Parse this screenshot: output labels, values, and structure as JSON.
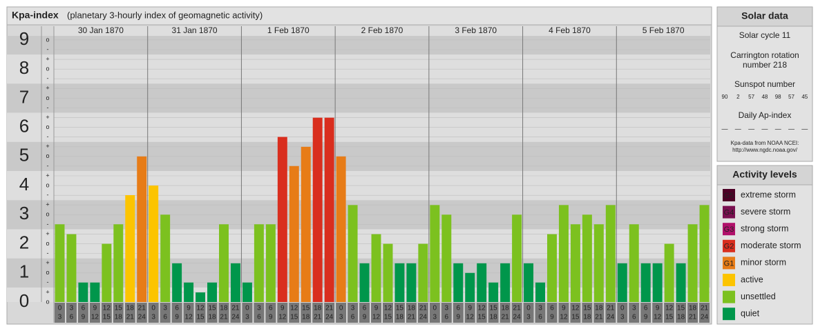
{
  "chart_data": {
    "type": "bar",
    "title": "Kpa-index",
    "subtitle": "(planetary 3-hourly index of geomagnetic activity)",
    "ylim": [
      0,
      9.14
    ],
    "yticks": [
      0,
      1,
      2,
      3,
      4,
      5,
      6,
      7,
      8,
      9
    ],
    "minor_labels": [
      "o",
      "+",
      "-"
    ],
    "hour_labels": [
      0,
      3,
      6,
      9,
      12,
      15,
      18,
      21,
      24
    ],
    "days": [
      {
        "date": "30 Jan 1870",
        "values": [
          2.67,
          2.33,
          0.67,
          0.67,
          2,
          2.67,
          3.67,
          5
        ],
        "colors": [
          "#7cc11f",
          "#7cc11f",
          "#00964b",
          "#00964b",
          "#7cc11f",
          "#7cc11f",
          "#fcc400",
          "#e77c17"
        ]
      },
      {
        "date": "31 Jan 1870",
        "values": [
          4,
          3,
          1.33,
          0.67,
          0.33,
          0.67,
          2.67,
          1.33
        ],
        "colors": [
          "#fcc400",
          "#7cc11f",
          "#00964b",
          "#00964b",
          "#00964b",
          "#00964b",
          "#7cc11f",
          "#00964b"
        ]
      },
      {
        "date": "1 Feb 1870",
        "values": [
          0.67,
          2.67,
          2.67,
          5.67,
          4.67,
          5.33,
          6.33,
          6.33
        ],
        "colors": [
          "#00964b",
          "#7cc11f",
          "#7cc11f",
          "#d92e1e",
          "#e77c17",
          "#e77c17",
          "#d92e1e",
          "#d92e1e"
        ]
      },
      {
        "date": "2 Feb 1870",
        "values": [
          5,
          3.33,
          1.33,
          2.33,
          2,
          1.33,
          1.33,
          2
        ],
        "colors": [
          "#e77c17",
          "#7cc11f",
          "#00964b",
          "#7cc11f",
          "#7cc11f",
          "#00964b",
          "#00964b",
          "#7cc11f"
        ]
      },
      {
        "date": "3 Feb 1870",
        "values": [
          3.33,
          3,
          1.33,
          1,
          1.33,
          0.67,
          1.33,
          3
        ],
        "colors": [
          "#7cc11f",
          "#7cc11f",
          "#00964b",
          "#00964b",
          "#00964b",
          "#00964b",
          "#00964b",
          "#7cc11f"
        ]
      },
      {
        "date": "4 Feb 1870",
        "values": [
          1.33,
          0.67,
          2.33,
          3.33,
          2.67,
          3,
          2.67,
          3.33
        ],
        "colors": [
          "#00964b",
          "#00964b",
          "#7cc11f",
          "#7cc11f",
          "#7cc11f",
          "#7cc11f",
          "#7cc11f",
          "#7cc11f"
        ]
      },
      {
        "date": "5 Feb 1870",
        "values": [
          1.33,
          2.67,
          1.33,
          1.33,
          2,
          1.33,
          2.67,
          3.33
        ],
        "colors": [
          "#00964b",
          "#7cc11f",
          "#00964b",
          "#00964b",
          "#7cc11f",
          "#00964b",
          "#7cc11f",
          "#7cc11f"
        ]
      }
    ]
  },
  "solar_data": {
    "title": "Solar data",
    "solar_cycle": "Solar cycle 11",
    "carrington": [
      "Carrington rotation",
      "number 218"
    ],
    "sunspot_title": "Sunspot number",
    "sunspot_numbers": [
      90,
      2,
      57,
      48,
      98,
      57,
      45
    ],
    "ap_title": "Daily Ap-index",
    "ap_values": [
      "—",
      "—",
      "—",
      "—",
      "—",
      "—",
      "—"
    ],
    "source": [
      "Kpa-data from NOAA NCEI:",
      "http://www.ngdc.noaa.gov/"
    ]
  },
  "activity_levels": {
    "title": "Activity levels",
    "items": [
      {
        "code": "G5",
        "label": "extreme storm",
        "color": "#4d0026"
      },
      {
        "code": "G4",
        "label": "severe storm",
        "color": "#7a1050"
      },
      {
        "code": "G3",
        "label": "strong storm",
        "color": "#b0106a"
      },
      {
        "code": "G2",
        "label": "moderate storm",
        "color": "#d92e1e"
      },
      {
        "code": "G1",
        "label": "minor storm",
        "color": "#e77c17"
      },
      {
        "label": "active",
        "color": "#fcc400"
      },
      {
        "label": "unsettled",
        "color": "#7cc11f"
      },
      {
        "label": "quiet",
        "color": "#00964b"
      }
    ]
  }
}
